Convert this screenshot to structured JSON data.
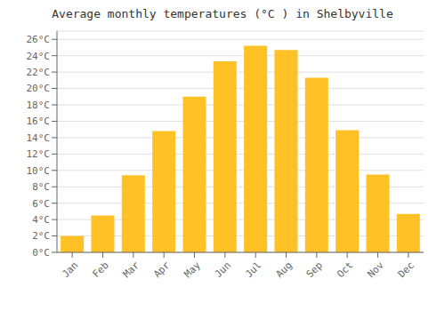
{
  "chart_data": {
    "type": "bar",
    "title": "Average monthly temperatures (°C ) in Shelbyville",
    "categories": [
      "Jan",
      "Feb",
      "Mar",
      "Apr",
      "May",
      "Jun",
      "Jul",
      "Aug",
      "Sep",
      "Oct",
      "Nov",
      "Dec"
    ],
    "values": [
      2.0,
      4.5,
      9.4,
      14.8,
      19.0,
      23.3,
      25.2,
      24.7,
      21.3,
      14.9,
      9.5,
      4.7
    ],
    "color": "#FFC125",
    "ylim": [
      0,
      27
    ],
    "yticks": [
      {
        "value": 0,
        "label": "0°C"
      },
      {
        "value": 2,
        "label": "2°C"
      },
      {
        "value": 4,
        "label": "4°C"
      },
      {
        "value": 6,
        "label": "6°C"
      },
      {
        "value": 8,
        "label": "8°C"
      },
      {
        "value": 10,
        "label": "10°C"
      },
      {
        "value": 12,
        "label": "12°C"
      },
      {
        "value": 14,
        "label": "14°C"
      },
      {
        "value": 16,
        "label": "16°C"
      },
      {
        "value": 18,
        "label": "18°C"
      },
      {
        "value": 20,
        "label": "20°C"
      },
      {
        "value": 22,
        "label": "22°C"
      },
      {
        "value": 24,
        "label": "24°C"
      },
      {
        "value": 26,
        "label": "26°C"
      }
    ],
    "grid": true
  }
}
